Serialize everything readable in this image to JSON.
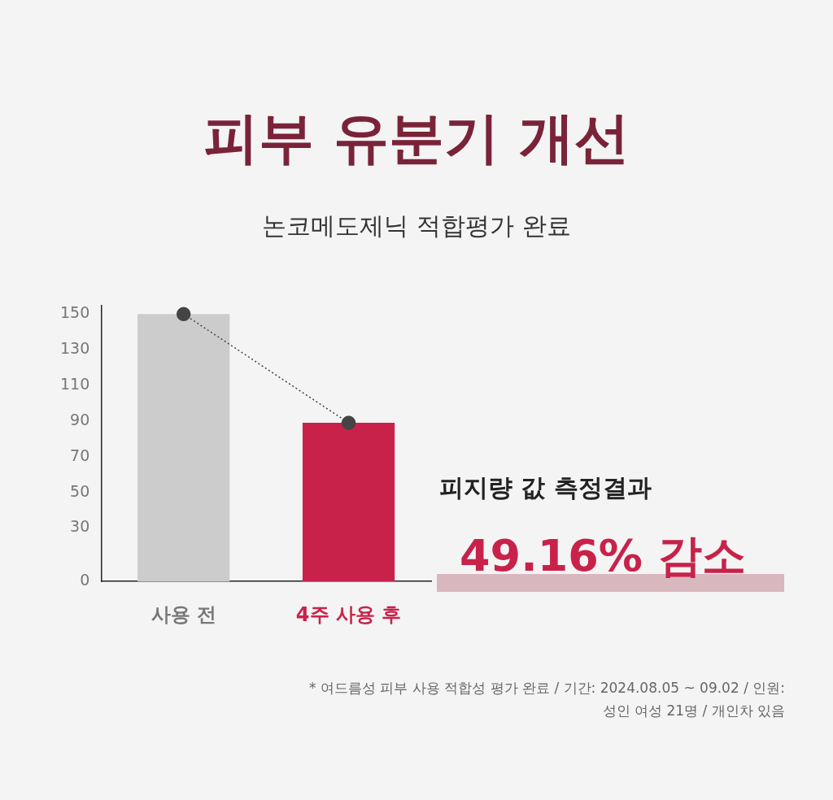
{
  "chart_data": {
    "type": "bar",
    "title": "피부 유분기 개선",
    "subtitle": "논코메도제닉 적합평가 완료",
    "categories": [
      "사용 전",
      "4주 사용 후"
    ],
    "series": [
      {
        "colors": [
          "#cccccc",
          "#c8224a"
        ],
        "values": [
          150,
          89
        ]
      },
      {
        "type": "line",
        "color": "#444444",
        "values": [
          150,
          89
        ],
        "marker": "circle",
        "line_style": "dotted"
      }
    ],
    "ylim": [
      0,
      155
    ],
    "yticks": [
      0,
      30,
      50,
      70,
      90,
      110,
      130,
      150
    ],
    "grid": false,
    "legend": false,
    "annotations": [
      "피지량 값 측정결과",
      "49.16% 감소",
      "* 여드름성 피부 사용 적합성 평가 완료 / 기간: 2024.08.05 ~ 09.02 / 인원: 성인 여성 21명 / 개인차 있음"
    ]
  }
}
